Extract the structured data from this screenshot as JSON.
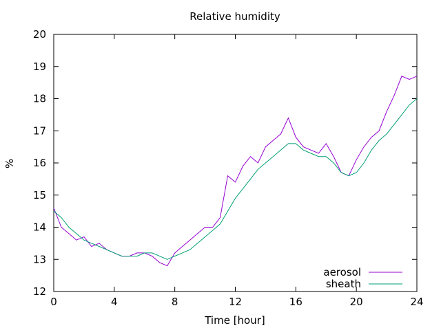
{
  "chart_data": {
    "type": "line",
    "title": "Relative humidity",
    "xlabel": "Time [hour]",
    "ylabel": "%",
    "xlim": [
      0,
      24
    ],
    "ylim": [
      12,
      20
    ],
    "xticks": [
      0,
      4,
      8,
      12,
      16,
      20,
      24
    ],
    "yticks": [
      12,
      13,
      14,
      15,
      16,
      17,
      18,
      19,
      20
    ],
    "grid": false,
    "legend_position": "bottom-right",
    "series": [
      {
        "name": "aerosol",
        "color": "#9400d3",
        "x": [
          0,
          0.5,
          1,
          1.5,
          2,
          2.5,
          3,
          3.5,
          4,
          4.5,
          5,
          5.5,
          6,
          6.5,
          7,
          7.5,
          8,
          8.5,
          9,
          9.5,
          10,
          10.5,
          11,
          11.5,
          12,
          12.5,
          13,
          13.5,
          14,
          14.5,
          15,
          15.5,
          16,
          16.5,
          17,
          17.5,
          18,
          18.5,
          19,
          19.5,
          20,
          20.5,
          21,
          21.5,
          22,
          22.5,
          23,
          23.5,
          24
        ],
        "y": [
          14.6,
          14.0,
          13.8,
          13.6,
          13.7,
          13.4,
          13.5,
          13.3,
          13.2,
          13.1,
          13.1,
          13.2,
          13.2,
          13.1,
          12.9,
          12.8,
          13.2,
          13.4,
          13.6,
          13.8,
          14.0,
          14.0,
          14.3,
          15.6,
          15.4,
          15.9,
          16.2,
          16.0,
          16.5,
          16.7,
          16.9,
          17.4,
          16.8,
          16.5,
          16.4,
          16.3,
          16.6,
          16.2,
          15.7,
          15.6,
          16.1,
          16.5,
          16.8,
          17.0,
          17.6,
          18.1,
          18.7,
          18.6,
          18.7
        ]
      },
      {
        "name": "sheath",
        "color": "#009e73",
        "x": [
          0,
          0.5,
          1,
          1.5,
          2,
          2.5,
          3,
          3.5,
          4,
          4.5,
          5,
          5.5,
          6,
          6.5,
          7,
          7.5,
          8,
          8.5,
          9,
          9.5,
          10,
          10.5,
          11,
          11.5,
          12,
          12.5,
          13,
          13.5,
          14,
          14.5,
          15,
          15.5,
          16,
          16.5,
          17,
          17.5,
          18,
          18.5,
          19,
          19.5,
          20,
          20.5,
          21,
          21.5,
          22,
          22.5,
          23,
          23.5,
          24
        ],
        "y": [
          14.5,
          14.3,
          14.0,
          13.8,
          13.6,
          13.5,
          13.4,
          13.3,
          13.2,
          13.1,
          13.1,
          13.1,
          13.2,
          13.2,
          13.1,
          13.0,
          13.1,
          13.2,
          13.3,
          13.5,
          13.7,
          13.9,
          14.1,
          14.5,
          14.9,
          15.2,
          15.5,
          15.8,
          16.0,
          16.2,
          16.4,
          16.6,
          16.6,
          16.4,
          16.3,
          16.2,
          16.2,
          16.0,
          15.7,
          15.6,
          15.7,
          16.0,
          16.4,
          16.7,
          16.9,
          17.2,
          17.5,
          17.8,
          18.0
        ]
      }
    ]
  }
}
